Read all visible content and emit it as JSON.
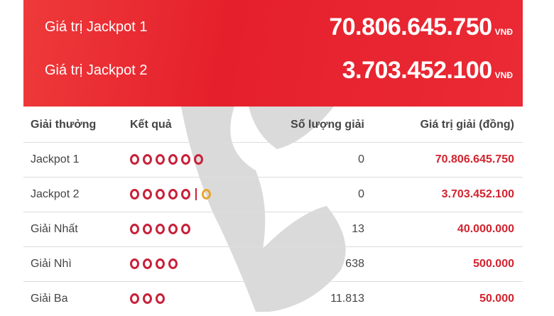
{
  "jackpots": [
    {
      "label": "Giá trị Jackpot 1",
      "value": "70.806.645.750",
      "unit": "VNĐ"
    },
    {
      "label": "Giá trị Jackpot 2",
      "value": "3.703.452.100",
      "unit": "VNĐ"
    }
  ],
  "table": {
    "headers": [
      "Giải thưởng",
      "Kết quả",
      "Số lượng giải",
      "Giá trị giải (đồng)"
    ],
    "rows": [
      {
        "name": "Jackpot 1",
        "balls": 6,
        "bonus": false,
        "count": "0",
        "value": "70.806.645.750"
      },
      {
        "name": "Jackpot 2",
        "balls": 5,
        "bonus": true,
        "count": "0",
        "value": "3.703.452.100"
      },
      {
        "name": "Giải Nhất",
        "balls": 5,
        "bonus": false,
        "count": "13",
        "value": "40.000.000"
      },
      {
        "name": "Giải Nhì",
        "balls": 4,
        "bonus": false,
        "count": "638",
        "value": "500.000"
      },
      {
        "name": "Giải Ba",
        "balls": 3,
        "bonus": false,
        "count": "11.813",
        "value": "50.000"
      }
    ]
  },
  "colors": {
    "banner": "#e5202c",
    "ball": "#c8213a",
    "bonus_ball": "#e9a532",
    "prize": "#d2232e"
  }
}
